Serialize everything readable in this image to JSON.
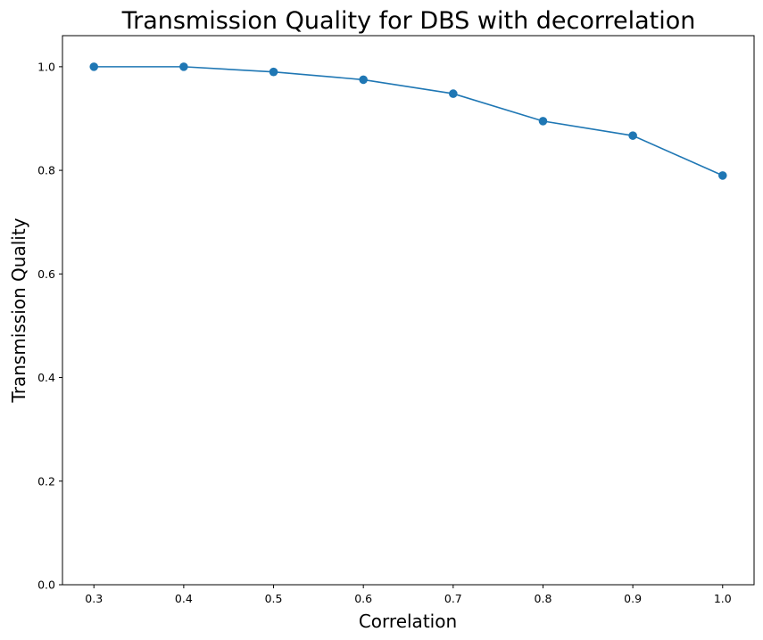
{
  "chart_data": {
    "type": "line",
    "title": "Transmission Quality for DBS with decorrelation",
    "xlabel": "Correlation",
    "ylabel": "Transmission Quality",
    "x": [
      0.3,
      0.4,
      0.5,
      0.6,
      0.7,
      0.8,
      0.9,
      1.0
    ],
    "series": [
      {
        "values": [
          1.0,
          1.0,
          0.99,
          0.975,
          0.948,
          0.895,
          0.867,
          0.79
        ]
      }
    ],
    "xlim": [
      0.265,
      1.035
    ],
    "ylim": [
      0.0,
      1.06
    ],
    "xticks": [
      "0.3",
      "0.4",
      "0.5",
      "0.6",
      "0.7",
      "0.8",
      "0.9",
      "1.0"
    ],
    "xtick_values": [
      0.3,
      0.4,
      0.5,
      0.6,
      0.7,
      0.8,
      0.9,
      1.0
    ],
    "yticks": [
      "0.0",
      "0.2",
      "0.4",
      "0.6",
      "0.8",
      "1.0"
    ],
    "ytick_values": [
      0.0,
      0.2,
      0.4,
      0.6,
      0.8,
      1.0
    ],
    "grid": false,
    "markers": true,
    "color": "#1f77b4"
  }
}
